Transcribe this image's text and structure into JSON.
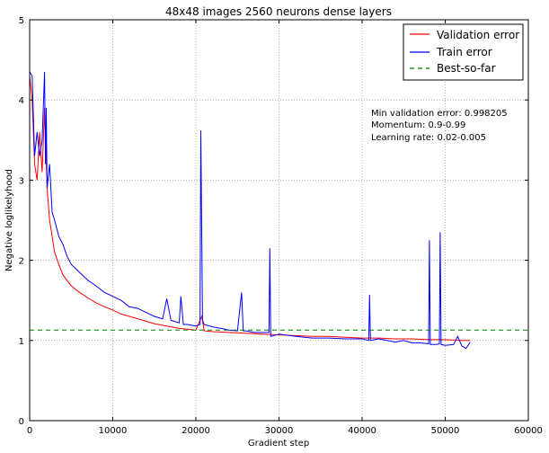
{
  "chart_data": {
    "type": "line",
    "title": "48x48 images 2560 neurons dense layers",
    "xlabel": "Gradient step",
    "ylabel": "Negative loglikelyhood",
    "xlim": [
      0,
      60000
    ],
    "ylim": [
      0,
      5
    ],
    "xticks": [
      0,
      10000,
      20000,
      30000,
      40000,
      50000,
      60000
    ],
    "yticks": [
      0,
      1,
      2,
      3,
      4,
      5
    ],
    "grid": true,
    "legend": {
      "placement": "top-right"
    },
    "annotation": [
      "Min validation error: 0.998205",
      "Momentum: 0.9-0.99",
      "Learning rate: 0.02-0.005"
    ],
    "series": [
      {
        "name": "Validation error",
        "color": "#ff0000",
        "style": "solid",
        "x": [
          0,
          300,
          600,
          900,
          1200,
          1500,
          1800,
          2100,
          2400,
          2700,
          3000,
          3500,
          4000,
          4500,
          5000,
          6000,
          7000,
          8000,
          9000,
          10000,
          11000,
          12000,
          13000,
          14000,
          15000,
          16000,
          17000,
          18000,
          19000,
          20000,
          20700,
          21000,
          22000,
          24000,
          26000,
          28000,
          30000,
          32000,
          34000,
          36000,
          38000,
          40000,
          42000,
          44000,
          46000,
          48000,
          50000,
          52000,
          53000
        ],
        "y": [
          4.3,
          4.0,
          3.2,
          3.0,
          3.6,
          3.1,
          3.9,
          2.9,
          2.5,
          2.3,
          2.1,
          1.95,
          1.82,
          1.75,
          1.68,
          1.6,
          1.53,
          1.47,
          1.42,
          1.38,
          1.33,
          1.3,
          1.27,
          1.24,
          1.21,
          1.19,
          1.17,
          1.15,
          1.14,
          1.13,
          1.3,
          1.12,
          1.11,
          1.1,
          1.09,
          1.08,
          1.07,
          1.06,
          1.05,
          1.05,
          1.04,
          1.03,
          1.03,
          1.02,
          1.02,
          1.01,
          1.01,
          1.0,
          1.0
        ]
      },
      {
        "name": "Train error",
        "color": "#0000ff",
        "style": "solid",
        "x": [
          0,
          300,
          600,
          900,
          1200,
          1500,
          1800,
          1900,
          2000,
          2100,
          2400,
          2700,
          3000,
          3500,
          4000,
          4500,
          5000,
          6000,
          7000,
          8000,
          9000,
          10000,
          11000,
          12000,
          13000,
          14000,
          15000,
          16000,
          16500,
          17000,
          18000,
          18200,
          18500,
          19000,
          20000,
          20500,
          20600,
          20800,
          21000,
          22000,
          23000,
          24000,
          25000,
          25500,
          25700,
          26000,
          27000,
          28000,
          28800,
          28900,
          29000,
          30000,
          32000,
          34000,
          36000,
          38000,
          40000,
          40800,
          40900,
          41000,
          42000,
          43000,
          44000,
          45000,
          46000,
          47000,
          48000,
          48100,
          48200,
          49000,
          49300,
          49400,
          49500,
          50000,
          51000,
          51500,
          52000,
          52500,
          53000
        ],
        "y": [
          4.35,
          4.3,
          3.3,
          3.6,
          3.3,
          3.5,
          4.35,
          3.2,
          3.9,
          2.9,
          3.2,
          2.6,
          2.5,
          2.3,
          2.2,
          2.05,
          1.95,
          1.85,
          1.75,
          1.68,
          1.6,
          1.55,
          1.5,
          1.42,
          1.4,
          1.35,
          1.3,
          1.27,
          1.52,
          1.25,
          1.22,
          1.55,
          1.2,
          1.2,
          1.18,
          1.2,
          3.62,
          1.25,
          1.2,
          1.17,
          1.15,
          1.13,
          1.12,
          1.6,
          1.12,
          1.12,
          1.1,
          1.1,
          1.1,
          2.15,
          1.05,
          1.08,
          1.05,
          1.03,
          1.03,
          1.02,
          1.02,
          1.0,
          1.57,
          1.0,
          1.02,
          1.0,
          0.98,
          1.0,
          0.97,
          0.97,
          0.96,
          2.25,
          0.95,
          0.95,
          0.96,
          2.35,
          0.95,
          0.94,
          0.95,
          1.05,
          0.93,
          0.9,
          0.98
        ]
      },
      {
        "name": "Best-so-far",
        "color": "#008000",
        "style": "dashed",
        "x": [
          0,
          60000
        ],
        "y": [
          1.13,
          1.13
        ]
      }
    ]
  }
}
